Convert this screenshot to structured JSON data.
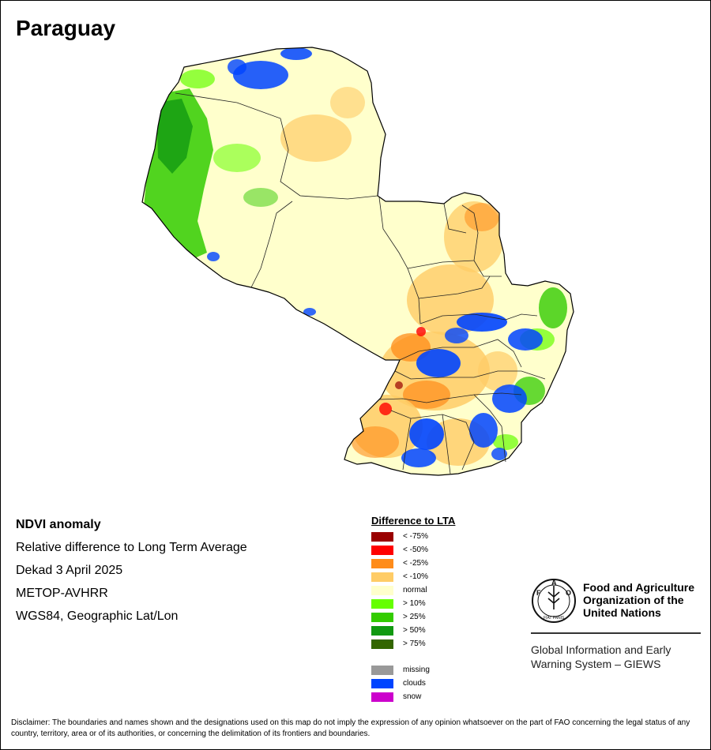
{
  "title": "Paraguay",
  "info": {
    "product": "NDVI anomaly",
    "description": "Relative difference to Long Term Average",
    "period": "Dekad 3 April 2025",
    "sensor": "METOP-AVHRR",
    "projection": "WGS84, Geographic Lat/Lon"
  },
  "legend": {
    "title": "Difference to LTA",
    "items": [
      {
        "label": "< -75%",
        "color": "#990000"
      },
      {
        "label": "< -50%",
        "color": "#ff0000"
      },
      {
        "label": "< -25%",
        "color": "#ff8c1a"
      },
      {
        "label": "< -10%",
        "color": "#ffcc66"
      },
      {
        "label": "normal",
        "color": "#ffffcc"
      },
      {
        "label": "> 10%",
        "color": "#66ff00"
      },
      {
        "label": "> 25%",
        "color": "#33cc00"
      },
      {
        "label": "> 50%",
        "color": "#119911"
      },
      {
        "label": "> 75%",
        "color": "#336600"
      }
    ],
    "extra": [
      {
        "label": "missing",
        "color": "#999999"
      },
      {
        "label": "clouds",
        "color": "#0044ff"
      },
      {
        "label": "snow",
        "color": "#cc00cc"
      }
    ]
  },
  "fao": {
    "name_line1": "Food and Agriculture",
    "name_line2": "Organization of the",
    "name_line3": "United Nations",
    "giews_line1": "Global Information and Early",
    "giews_line2": "Warning System – GIEWS",
    "logo_letters": [
      "F",
      "A",
      "O"
    ],
    "logo_motto": "FIAT PANIS"
  },
  "disclaimer": "Disclaimer: The boundaries and names shown and the designations used on this map do not imply the expression of any opinion whatsoever on the part of FAO concerning the legal status of any country, territory, area or of its authorities, or concerning the delimitation of its frontiers and boundaries."
}
